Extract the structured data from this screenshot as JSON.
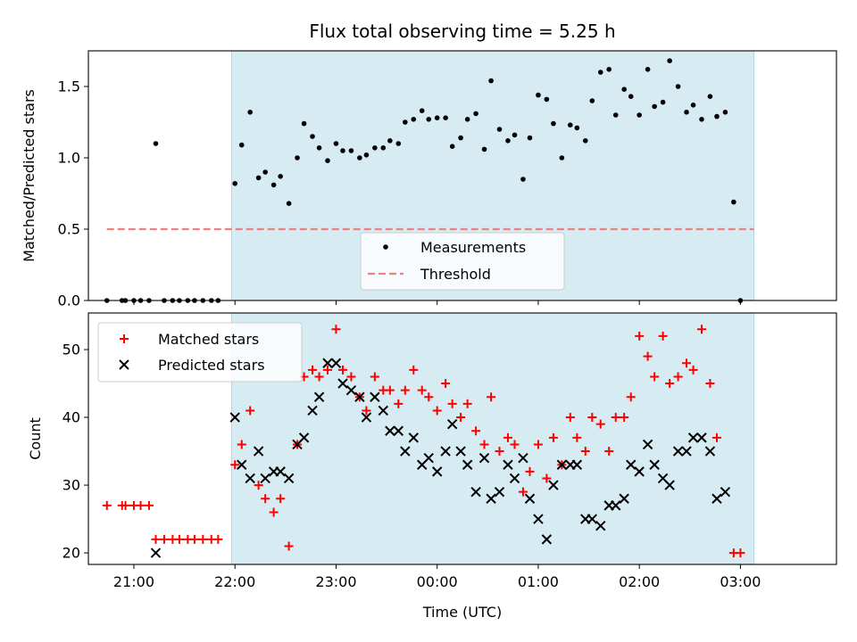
{
  "title": "Flux total observing time = 5.25 h",
  "xlabel": "Time (UTC)",
  "colors": {
    "band": "#ADD8E6",
    "threshold": "#F08080",
    "matched": "#FF0000",
    "predicted": "#000000",
    "measurements": "#000000"
  },
  "chart_data": [
    {
      "type": "scatter",
      "ylabel": "Matched/Predicted stars",
      "xlim": [
        "20:33",
        "03:57"
      ],
      "ylim": [
        0,
        1.75
      ],
      "yticks": [
        0.0,
        0.5,
        1.0,
        1.5
      ],
      "ytick_labels": [
        "0.0",
        "0.5",
        "1.0",
        "1.5"
      ],
      "shaded_interval": [
        "21:58",
        "03:08"
      ],
      "legend_position": "lower-center",
      "series": [
        {
          "name": "Measurements",
          "marker": "dot",
          "points": [
            [
              "20:44",
              0
            ],
            [
              "20:53",
              0
            ],
            [
              "20:55",
              0
            ],
            [
              "21:00",
              0
            ],
            [
              "21:04",
              0
            ],
            [
              "21:09",
              0
            ],
            [
              "21:13",
              1.1
            ],
            [
              "21:18",
              0
            ],
            [
              "21:23",
              0
            ],
            [
              "21:27",
              0
            ],
            [
              "21:32",
              0
            ],
            [
              "21:36",
              0
            ],
            [
              "21:41",
              0
            ],
            [
              "21:46",
              0
            ],
            [
              "21:50",
              0
            ],
            [
              "22:00",
              0.82
            ],
            [
              "22:04",
              1.09
            ],
            [
              "22:09",
              1.32
            ],
            [
              "22:14",
              0.86
            ],
            [
              "22:18",
              0.9
            ],
            [
              "22:23",
              0.81
            ],
            [
              "22:27",
              0.87
            ],
            [
              "22:32",
              0.68
            ],
            [
              "22:37",
              1.0
            ],
            [
              "22:41",
              1.24
            ],
            [
              "22:46",
              1.15
            ],
            [
              "22:50",
              1.07
            ],
            [
              "22:55",
              0.98
            ],
            [
              "23:00",
              1.1
            ],
            [
              "23:04",
              1.05
            ],
            [
              "23:09",
              1.05
            ],
            [
              "23:14",
              1.0
            ],
            [
              "23:18",
              1.02
            ],
            [
              "23:23",
              1.07
            ],
            [
              "23:28",
              1.07
            ],
            [
              "23:32",
              1.12
            ],
            [
              "23:37",
              1.1
            ],
            [
              "23:41",
              1.25
            ],
            [
              "23:46",
              1.27
            ],
            [
              "23:51",
              1.33
            ],
            [
              "23:55",
              1.27
            ],
            [
              "00:00",
              1.28
            ],
            [
              "00:05",
              1.28
            ],
            [
              "00:09",
              1.08
            ],
            [
              "00:14",
              1.14
            ],
            [
              "00:18",
              1.27
            ],
            [
              "00:23",
              1.31
            ],
            [
              "00:28",
              1.06
            ],
            [
              "00:32",
              1.54
            ],
            [
              "00:37",
              1.2
            ],
            [
              "00:42",
              1.12
            ],
            [
              "00:46",
              1.16
            ],
            [
              "00:51",
              0.85
            ],
            [
              "00:55",
              1.14
            ],
            [
              "01:00",
              1.44
            ],
            [
              "01:05",
              1.41
            ],
            [
              "01:09",
              1.24
            ],
            [
              "01:14",
              1.0
            ],
            [
              "01:19",
              1.23
            ],
            [
              "01:23",
              1.21
            ],
            [
              "01:28",
              1.12
            ],
            [
              "01:32",
              1.4
            ],
            [
              "01:37",
              1.6
            ],
            [
              "01:42",
              1.62
            ],
            [
              "01:46",
              1.3
            ],
            [
              "01:51",
              1.48
            ],
            [
              "01:55",
              1.43
            ],
            [
              "02:00",
              1.3
            ],
            [
              "02:05",
              1.62
            ],
            [
              "02:09",
              1.36
            ],
            [
              "02:14",
              1.39
            ],
            [
              "02:18",
              1.68
            ],
            [
              "02:23",
              1.5
            ],
            [
              "02:28",
              1.32
            ],
            [
              "02:32",
              1.37
            ],
            [
              "02:37",
              1.27
            ],
            [
              "02:42",
              1.43
            ],
            [
              "02:46",
              1.29
            ],
            [
              "02:51",
              1.32
            ],
            [
              "02:56",
              0.69
            ],
            [
              "03:00",
              0
            ]
          ]
        },
        {
          "name": "Threshold",
          "marker": "dashed-line",
          "x_range": [
            "20:44",
            "03:08"
          ],
          "value": 0.5
        }
      ]
    },
    {
      "type": "scatter",
      "ylabel": "Count",
      "xlim": [
        "20:33",
        "03:57"
      ],
      "ylim": [
        18.3,
        55.4
      ],
      "yticks": [
        20,
        30,
        40,
        50
      ],
      "ytick_labels": [
        "20",
        "30",
        "40",
        "50"
      ],
      "xticks": [
        "21:00",
        "22:00",
        "23:00",
        "00:00",
        "01:00",
        "02:00",
        "03:00"
      ],
      "xtick_labels": [
        "21:00",
        "22:00",
        "23:00",
        "00:00",
        "01:00",
        "02:00",
        "03:00"
      ],
      "shaded_interval": [
        "21:58",
        "03:08"
      ],
      "legend_position": "upper-left",
      "series": [
        {
          "name": "Matched stars",
          "marker": "plus",
          "points": [
            [
              "20:44",
              27
            ],
            [
              "20:53",
              27
            ],
            [
              "20:55",
              27
            ],
            [
              "21:00",
              27
            ],
            [
              "21:04",
              27
            ],
            [
              "21:09",
              27
            ],
            [
              "21:13",
              22
            ],
            [
              "21:18",
              22
            ],
            [
              "21:23",
              22
            ],
            [
              "21:27",
              22
            ],
            [
              "21:32",
              22
            ],
            [
              "21:36",
              22
            ],
            [
              "21:41",
              22
            ],
            [
              "21:46",
              22
            ],
            [
              "21:50",
              22
            ],
            [
              "22:00",
              33
            ],
            [
              "22:04",
              36
            ],
            [
              "22:09",
              41
            ],
            [
              "22:14",
              30
            ],
            [
              "22:18",
              28
            ],
            [
              "22:23",
              26
            ],
            [
              "22:27",
              28
            ],
            [
              "22:32",
              21
            ],
            [
              "22:37",
              36
            ],
            [
              "22:41",
              46
            ],
            [
              "22:46",
              47
            ],
            [
              "22:50",
              46
            ],
            [
              "22:55",
              47
            ],
            [
              "23:00",
              53
            ],
            [
              "23:04",
              47
            ],
            [
              "23:09",
              46
            ],
            [
              "23:14",
              43
            ],
            [
              "23:18",
              41
            ],
            [
              "23:23",
              46
            ],
            [
              "23:28",
              44
            ],
            [
              "23:32",
              44
            ],
            [
              "23:37",
              42
            ],
            [
              "23:41",
              44
            ],
            [
              "23:46",
              47
            ],
            [
              "23:51",
              44
            ],
            [
              "23:55",
              43
            ],
            [
              "00:00",
              41
            ],
            [
              "00:05",
              45
            ],
            [
              "00:09",
              42
            ],
            [
              "00:14",
              40
            ],
            [
              "00:18",
              42
            ],
            [
              "00:23",
              38
            ],
            [
              "00:28",
              36
            ],
            [
              "00:32",
              43
            ],
            [
              "00:37",
              35
            ],
            [
              "00:42",
              37
            ],
            [
              "00:46",
              36
            ],
            [
              "00:51",
              29
            ],
            [
              "00:55",
              32
            ],
            [
              "01:00",
              36
            ],
            [
              "01:05",
              31
            ],
            [
              "01:09",
              37
            ],
            [
              "01:14",
              33
            ],
            [
              "01:19",
              40
            ],
            [
              "01:23",
              37
            ],
            [
              "01:28",
              35
            ],
            [
              "01:32",
              40
            ],
            [
              "01:37",
              39
            ],
            [
              "01:42",
              35
            ],
            [
              "01:46",
              40
            ],
            [
              "01:51",
              40
            ],
            [
              "01:55",
              43
            ],
            [
              "02:00",
              52
            ],
            [
              "02:05",
              49
            ],
            [
              "02:09",
              46
            ],
            [
              "02:14",
              52
            ],
            [
              "02:18",
              45
            ],
            [
              "02:23",
              46
            ],
            [
              "02:28",
              48
            ],
            [
              "02:32",
              47
            ],
            [
              "02:37",
              53
            ],
            [
              "02:42",
              45
            ],
            [
              "02:46",
              37
            ],
            [
              "02:56",
              20
            ],
            [
              "03:00",
              20
            ]
          ]
        },
        {
          "name": "Predicted stars",
          "marker": "x",
          "points": [
            [
              "21:13",
              20
            ],
            [
              "22:00",
              40
            ],
            [
              "22:04",
              33
            ],
            [
              "22:09",
              31
            ],
            [
              "22:14",
              35
            ],
            [
              "22:18",
              31
            ],
            [
              "22:23",
              32
            ],
            [
              "22:27",
              32
            ],
            [
              "22:32",
              31
            ],
            [
              "22:37",
              36
            ],
            [
              "22:41",
              37
            ],
            [
              "22:46",
              41
            ],
            [
              "22:50",
              43
            ],
            [
              "22:55",
              48
            ],
            [
              "23:00",
              48
            ],
            [
              "23:04",
              45
            ],
            [
              "23:09",
              44
            ],
            [
              "23:14",
              43
            ],
            [
              "23:18",
              40
            ],
            [
              "23:23",
              43
            ],
            [
              "23:28",
              41
            ],
            [
              "23:32",
              38
            ],
            [
              "23:37",
              38
            ],
            [
              "23:41",
              35
            ],
            [
              "23:46",
              37
            ],
            [
              "23:51",
              33
            ],
            [
              "23:55",
              34
            ],
            [
              "00:00",
              32
            ],
            [
              "00:05",
              35
            ],
            [
              "00:09",
              39
            ],
            [
              "00:14",
              35
            ],
            [
              "00:18",
              33
            ],
            [
              "00:23",
              29
            ],
            [
              "00:28",
              34
            ],
            [
              "00:32",
              28
            ],
            [
              "00:37",
              29
            ],
            [
              "00:42",
              33
            ],
            [
              "00:46",
              31
            ],
            [
              "00:51",
              34
            ],
            [
              "00:55",
              28
            ],
            [
              "01:00",
              25
            ],
            [
              "01:05",
              22
            ],
            [
              "01:09",
              30
            ],
            [
              "01:14",
              33
            ],
            [
              "01:19",
              33
            ],
            [
              "01:23",
              33
            ],
            [
              "01:28",
              25
            ],
            [
              "01:32",
              25
            ],
            [
              "01:37",
              24
            ],
            [
              "01:42",
              27
            ],
            [
              "01:46",
              27
            ],
            [
              "01:51",
              28
            ],
            [
              "01:55",
              33
            ],
            [
              "02:00",
              32
            ],
            [
              "02:05",
              36
            ],
            [
              "02:09",
              33
            ],
            [
              "02:14",
              31
            ],
            [
              "02:18",
              30
            ],
            [
              "02:23",
              35
            ],
            [
              "02:28",
              35
            ],
            [
              "02:32",
              37
            ],
            [
              "02:37",
              37
            ],
            [
              "02:42",
              35
            ],
            [
              "02:46",
              28
            ],
            [
              "02:51",
              29
            ]
          ]
        }
      ]
    }
  ]
}
